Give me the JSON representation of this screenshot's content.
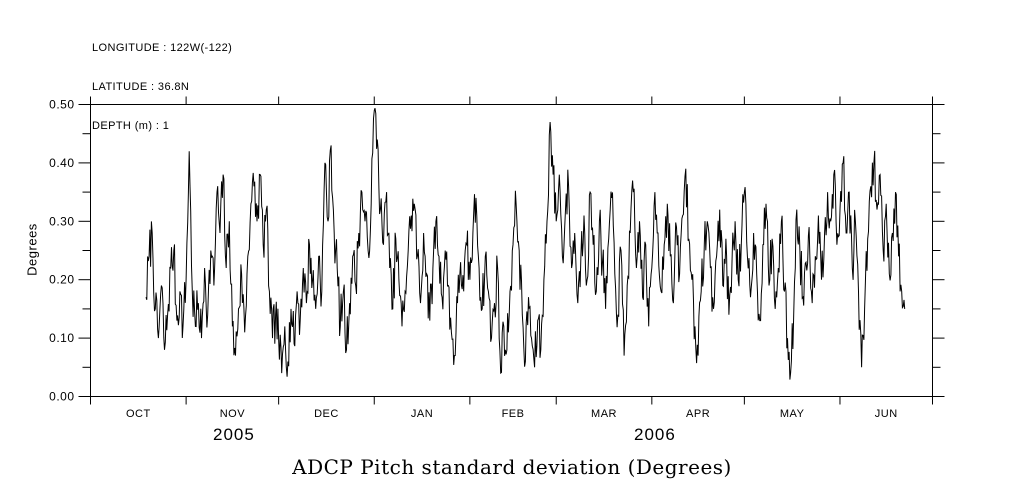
{
  "header": {
    "lines": [
      "LONGITUDE : 122W(-122)",
      "LATITUDE : 36.8N",
      "DEPTH (m) : 1"
    ]
  },
  "chart_data": {
    "type": "line",
    "title": "ADCP Pitch standard deviation (Degrees)",
    "xlabel": "",
    "ylabel": "Degrees",
    "ylim": [
      0.0,
      0.5
    ],
    "grid": "off",
    "legend": "none",
    "background_color": "#ffffff",
    "line_color": "#000000",
    "axis_color": "#000000",
    "y_major_ticks": [
      {
        "v": 0.0,
        "label": "0.00"
      },
      {
        "v": 0.1,
        "label": "0.10"
      },
      {
        "v": 0.2,
        "label": "0.20"
      },
      {
        "v": 0.3,
        "label": "0.30"
      },
      {
        "v": 0.4,
        "label": "0.40"
      },
      {
        "v": 0.5,
        "label": "0.50"
      }
    ],
    "y_minor_ticks": [
      0.05,
      0.15,
      0.25,
      0.35,
      0.45
    ],
    "x_axis": {
      "total_days": 273,
      "range_note": "Oct 1 2005 through Jul 1 2006, day 0 = Oct 1 2005",
      "month_ticks_days": [
        0,
        31,
        61,
        92,
        123,
        151,
        182,
        212,
        243,
        273
      ],
      "month_labels": [
        {
          "label": "OCT",
          "day": 15.5
        },
        {
          "label": "NOV",
          "day": 46
        },
        {
          "label": "DEC",
          "day": 76.5
        },
        {
          "label": "JAN",
          "day": 107.5
        },
        {
          "label": "FEB",
          "day": 137
        },
        {
          "label": "MAR",
          "day": 166.5
        },
        {
          "label": "APR",
          "day": 197
        },
        {
          "label": "MAY",
          "day": 227.5
        },
        {
          "label": "JUN",
          "day": 258
        }
      ],
      "year_labels": [
        {
          "label": "2005",
          "day": 46.5
        },
        {
          "label": "2006",
          "day": 183
        }
      ]
    },
    "noise": {
      "seed": 7,
      "substeps": 4,
      "amplitude": 0.042
    },
    "series": [
      {
        "name": "ADCP pitch standard deviation",
        "start_day": 18,
        "step_days": 1,
        "values": [
          0.17,
          0.24,
          0.28,
          0.15,
          0.1,
          0.19,
          0.08,
          0.14,
          0.22,
          0.25,
          0.13,
          0.18,
          0.12,
          0.2,
          0.42,
          0.18,
          0.12,
          0.16,
          0.1,
          0.22,
          0.14,
          0.25,
          0.19,
          0.35,
          0.28,
          0.38,
          0.22,
          0.3,
          0.12,
          0.07,
          0.15,
          0.21,
          0.11,
          0.24,
          0.33,
          0.36,
          0.3,
          0.38,
          0.26,
          0.32,
          0.18,
          0.1,
          0.14,
          0.1,
          0.04,
          0.12,
          0.06,
          0.15,
          0.09,
          0.18,
          0.13,
          0.22,
          0.16,
          0.26,
          0.2,
          0.15,
          0.24,
          0.18,
          0.4,
          0.3,
          0.43,
          0.28,
          0.22,
          0.12,
          0.18,
          0.08,
          0.16,
          0.24,
          0.19,
          0.28,
          0.35,
          0.3,
          0.25,
          0.33,
          0.49,
          0.44,
          0.32,
          0.26,
          0.35,
          0.22,
          0.15,
          0.27,
          0.2,
          0.12,
          0.18,
          0.25,
          0.31,
          0.33,
          0.24,
          0.16,
          0.28,
          0.21,
          0.13,
          0.22,
          0.3,
          0.24,
          0.17,
          0.25,
          0.19,
          0.11,
          0.07,
          0.16,
          0.23,
          0.18,
          0.26,
          0.2,
          0.28,
          0.34,
          0.22,
          0.15,
          0.24,
          0.18,
          0.1,
          0.16,
          0.22,
          0.04,
          0.12,
          0.08,
          0.18,
          0.26,
          0.33,
          0.25,
          0.14,
          0.06,
          0.17,
          0.1,
          0.05,
          0.13,
          0.08,
          0.2,
          0.3,
          0.47,
          0.38,
          0.3,
          0.38,
          0.24,
          0.32,
          0.36,
          0.22,
          0.28,
          0.16,
          0.24,
          0.31,
          0.2,
          0.35,
          0.26,
          0.18,
          0.3,
          0.23,
          0.15,
          0.27,
          0.34,
          0.21,
          0.14,
          0.25,
          0.07,
          0.19,
          0.28,
          0.35,
          0.22,
          0.3,
          0.17,
          0.26,
          0.12,
          0.22,
          0.35,
          0.28,
          0.18,
          0.26,
          0.33,
          0.24,
          0.16,
          0.29,
          0.21,
          0.31,
          0.39,
          0.27,
          0.2,
          0.12,
          0.07,
          0.18,
          0.26,
          0.3,
          0.22,
          0.15,
          0.24,
          0.32,
          0.19,
          0.27,
          0.14,
          0.23,
          0.3,
          0.2,
          0.26,
          0.35,
          0.24,
          0.17,
          0.28,
          0.21,
          0.13,
          0.26,
          0.33,
          0.19,
          0.27,
          0.15,
          0.22,
          0.3,
          0.18,
          0.1,
          0.04,
          0.14,
          0.32,
          0.25,
          0.17,
          0.23,
          0.29,
          0.16,
          0.24,
          0.31,
          0.2,
          0.28,
          0.35,
          0.3,
          0.38,
          0.26,
          0.32,
          0.4,
          0.28,
          0.35,
          0.22,
          0.3,
          0.18,
          0.05,
          0.15,
          0.27,
          0.36,
          0.4,
          0.32,
          0.38,
          0.25,
          0.33,
          0.21,
          0.28,
          0.35,
          0.24,
          0.18,
          0.15
        ]
      }
    ]
  }
}
